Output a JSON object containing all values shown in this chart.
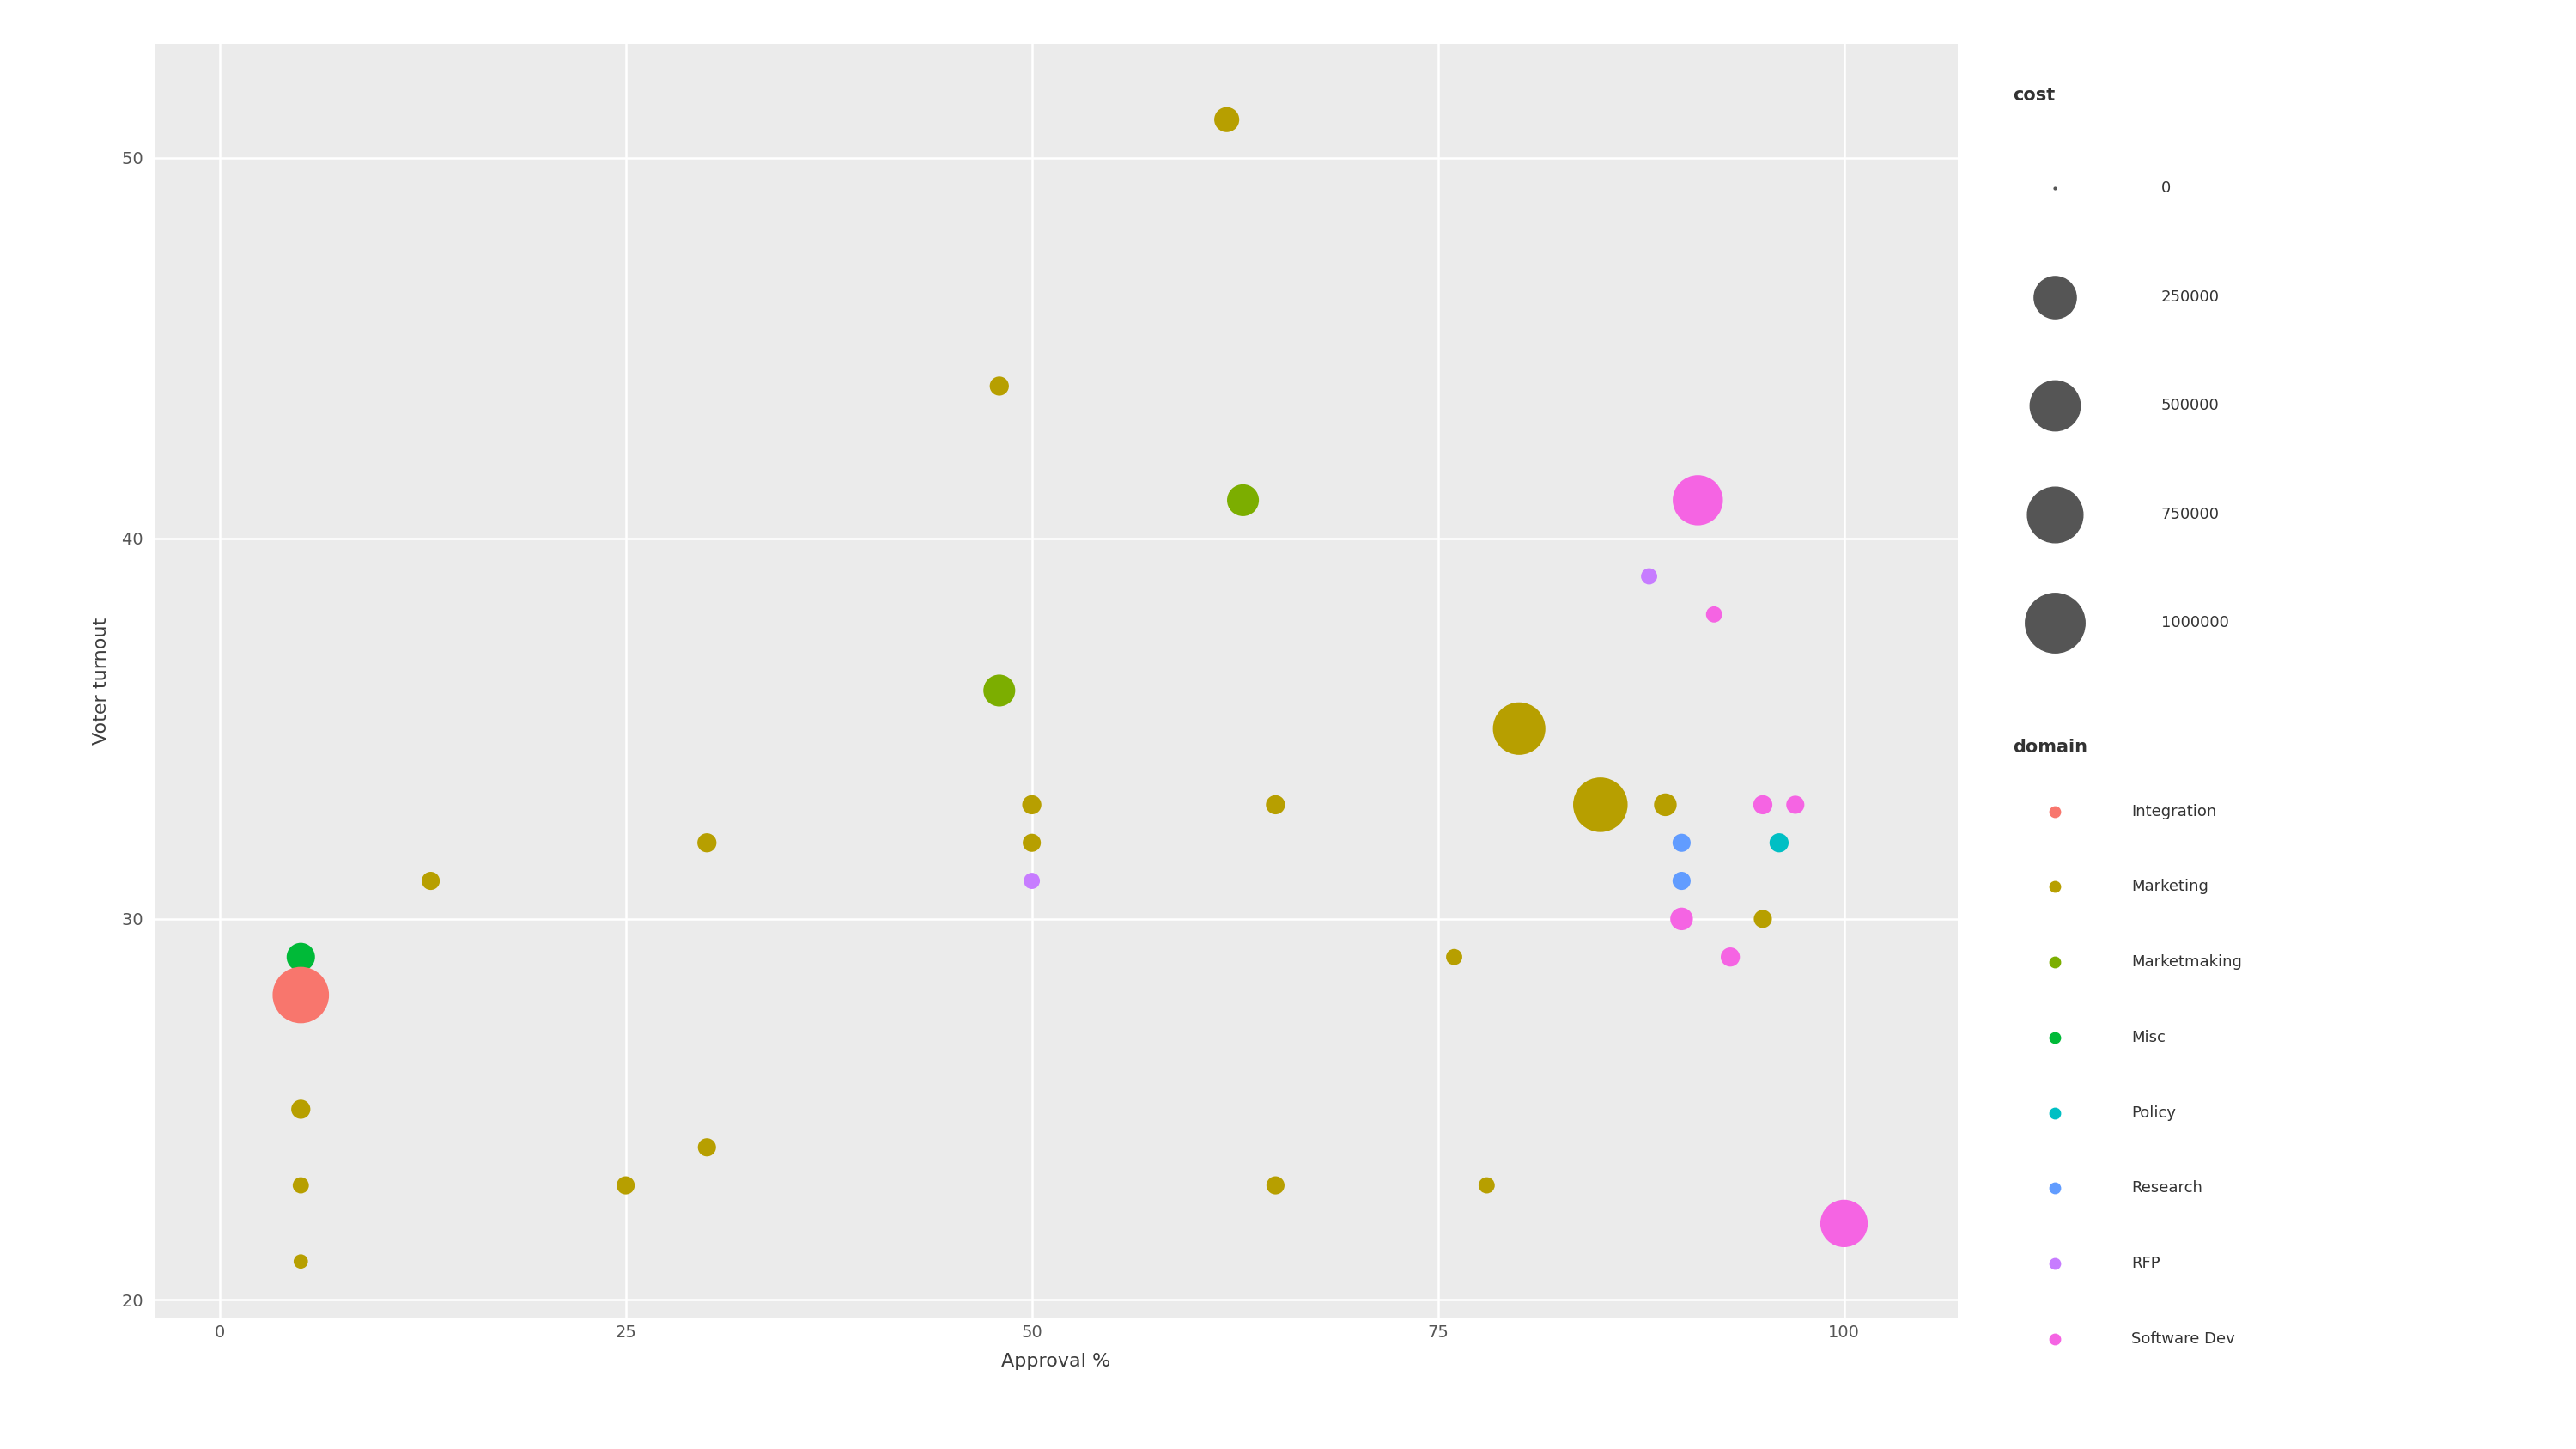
{
  "points": [
    {
      "approval": 5,
      "turnout": 29,
      "cost": 50000,
      "domain": "Misc"
    },
    {
      "approval": 5,
      "turnout": 28,
      "cost": 800000,
      "domain": "Integration"
    },
    {
      "approval": 5,
      "turnout": 25,
      "cost": 10000,
      "domain": "Marketing"
    },
    {
      "approval": 5,
      "turnout": 23,
      "cost": 5000,
      "domain": "Marketing"
    },
    {
      "approval": 5,
      "turnout": 21,
      "cost": 3000,
      "domain": "Marketing"
    },
    {
      "approval": 13,
      "turnout": 31,
      "cost": 8000,
      "domain": "Marketing"
    },
    {
      "approval": 25,
      "turnout": 23,
      "cost": 8000,
      "domain": "Marketing"
    },
    {
      "approval": 30,
      "turnout": 32,
      "cost": 10000,
      "domain": "Marketing"
    },
    {
      "approval": 30,
      "turnout": 24,
      "cost": 8000,
      "domain": "Marketing"
    },
    {
      "approval": 48,
      "turnout": 44,
      "cost": 10000,
      "domain": "Marketing"
    },
    {
      "approval": 48,
      "turnout": 36,
      "cost": 80000,
      "domain": "Marketmaking"
    },
    {
      "approval": 50,
      "turnout": 33,
      "cost": 10000,
      "domain": "Marketing"
    },
    {
      "approval": 50,
      "turnout": 32,
      "cost": 8000,
      "domain": "Marketing"
    },
    {
      "approval": 50,
      "turnout": 31,
      "cost": 5000,
      "domain": "RFP"
    },
    {
      "approval": 62,
      "turnout": 51,
      "cost": 30000,
      "domain": "Marketing"
    },
    {
      "approval": 63,
      "turnout": 41,
      "cost": 80000,
      "domain": "Marketmaking"
    },
    {
      "approval": 65,
      "turnout": 33,
      "cost": 10000,
      "domain": "Marketing"
    },
    {
      "approval": 65,
      "turnout": 23,
      "cost": 8000,
      "domain": "Marketing"
    },
    {
      "approval": 65,
      "turnout": 23,
      "cost": 5000,
      "domain": "Marketing"
    },
    {
      "approval": 76,
      "turnout": 29,
      "cost": 5000,
      "domain": "Marketing"
    },
    {
      "approval": 78,
      "turnout": 23,
      "cost": 5000,
      "domain": "Marketing"
    },
    {
      "approval": 80,
      "turnout": 35,
      "cost": 600000,
      "domain": "Marketing"
    },
    {
      "approval": 85,
      "turnout": 33,
      "cost": 700000,
      "domain": "Marketing"
    },
    {
      "approval": 88,
      "turnout": 39,
      "cost": 5000,
      "domain": "RFP"
    },
    {
      "approval": 89,
      "turnout": 33,
      "cost": 20000,
      "domain": "Marketing"
    },
    {
      "approval": 90,
      "turnout": 32,
      "cost": 8000,
      "domain": "Research"
    },
    {
      "approval": 90,
      "turnout": 31,
      "cost": 5000,
      "domain": "Policy"
    },
    {
      "approval": 90,
      "turnout": 31,
      "cost": 5000,
      "domain": "Research"
    },
    {
      "approval": 90,
      "turnout": 31,
      "cost": 8000,
      "domain": "Research"
    },
    {
      "approval": 90,
      "turnout": 30,
      "cost": 20000,
      "domain": "Software Dev"
    },
    {
      "approval": 91,
      "turnout": 41,
      "cost": 500000,
      "domain": "Software Dev"
    },
    {
      "approval": 92,
      "turnout": 38,
      "cost": 5000,
      "domain": "Software Dev"
    },
    {
      "approval": 93,
      "turnout": 29,
      "cost": 10000,
      "domain": "Software Dev"
    },
    {
      "approval": 95,
      "turnout": 33,
      "cost": 10000,
      "domain": "Software Dev"
    },
    {
      "approval": 95,
      "turnout": 30,
      "cost": 8000,
      "domain": "Marketing"
    },
    {
      "approval": 96,
      "turnout": 32,
      "cost": 10000,
      "domain": "Policy"
    },
    {
      "approval": 97,
      "turnout": 33,
      "cost": 8000,
      "domain": "Software Dev"
    },
    {
      "approval": 100,
      "turnout": 22,
      "cost": 400000,
      "domain": "Software Dev"
    }
  ],
  "domain_colors": {
    "Integration": "#F8766D",
    "Marketing": "#B79F00",
    "Marketmaking": "#7CAE00",
    "Misc": "#00BA38",
    "Policy": "#00BFC4",
    "Research": "#619CFF",
    "RFP": "#C77CFF",
    "Software Dev": "#F564E3"
  },
  "xlabel": "Approval %",
  "ylabel": "Voter turnout",
  "xlim": [
    -4,
    107
  ],
  "ylim": [
    19.5,
    53
  ],
  "xticks": [
    0,
    25,
    50,
    75,
    100
  ],
  "yticks": [
    20,
    30,
    40,
    50
  ],
  "bg_color": "#EBEBEB",
  "grid_color": "white",
  "axis_label_fontsize": 16,
  "tick_fontsize": 14,
  "legend_title_fontsize": 15,
  "legend_text_fontsize": 13
}
